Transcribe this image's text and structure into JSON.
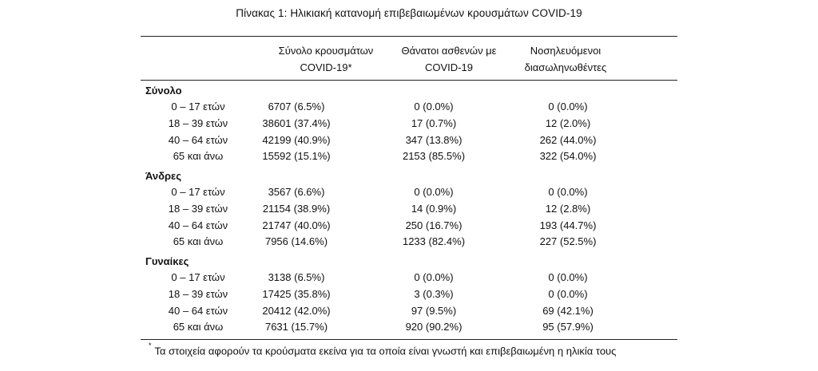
{
  "caption": "Πίνακας 1: Ηλικιακή κατανομή επιβεβαιωμένων κρουσμάτων COVID-19",
  "columns": [
    {
      "line1": "Σύνολο κρουσμάτων",
      "line2": "COVID-19*"
    },
    {
      "line1": "Θάνατοι ασθενών με",
      "line2": "COVID-19"
    },
    {
      "line1": "Νοσηλευόμενοι",
      "line2": "διασωληνωθέντες"
    }
  ],
  "sections": [
    {
      "title": "Σύνολο",
      "rows": [
        {
          "label": "0 – 17 ετών",
          "c1": "6707 (6.5%)",
          "c2": "0 (0.0%)",
          "c3": "0 (0.0%)"
        },
        {
          "label": "18 – 39 ετών",
          "c1": "38601 (37.4%)",
          "c2": "17 (0.7%)",
          "c3": "12 (2.0%)"
        },
        {
          "label": "40 – 64 ετών",
          "c1": "42199 (40.9%)",
          "c2": "347 (13.8%)",
          "c3": "262 (44.0%)"
        },
        {
          "label": "65 και άνω",
          "c1": "15592 (15.1%)",
          "c2": "2153 (85.5%)",
          "c3": "322 (54.0%)"
        }
      ]
    },
    {
      "title": "Άνδρες",
      "rows": [
        {
          "label": "0 – 17 ετών",
          "c1": "3567 (6.6%)",
          "c2": "0 (0.0%)",
          "c3": "0 (0.0%)"
        },
        {
          "label": "18 – 39 ετών",
          "c1": "21154 (38.9%)",
          "c2": "14 (0.9%)",
          "c3": "12 (2.8%)"
        },
        {
          "label": "40 – 64 ετών",
          "c1": "21747 (40.0%)",
          "c2": "250 (16.7%)",
          "c3": "193 (44.7%)"
        },
        {
          "label": "65 και άνω",
          "c1": "7956 (14.6%)",
          "c2": "1233 (82.4%)",
          "c3": "227 (52.5%)"
        }
      ]
    },
    {
      "title": "Γυναίκες",
      "rows": [
        {
          "label": "0 – 17 ετών",
          "c1": "3138 (6.5%)",
          "c2": "0 (0.0%)",
          "c3": "0 (0.0%)"
        },
        {
          "label": "18 – 39 ετών",
          "c1": "17425 (35.8%)",
          "c2": "3 (0.3%)",
          "c3": "0 (0.0%)"
        },
        {
          "label": "40 – 64 ετών",
          "c1": "20412 (42.0%)",
          "c2": "97 (9.5%)",
          "c3": "69 (42.1%)"
        },
        {
          "label": "65 και άνω",
          "c1": "7631 (15.7%)",
          "c2": "920 (90.2%)",
          "c3": "95 (57.9%)"
        }
      ]
    }
  ],
  "footnote": {
    "marker": "*",
    "text": "Τα στοιχεία αφορούν τα κρούσματα εκείνα για τα οποία είναι γνωστή και επιβεβαιωμένη η ηλικία τους"
  }
}
